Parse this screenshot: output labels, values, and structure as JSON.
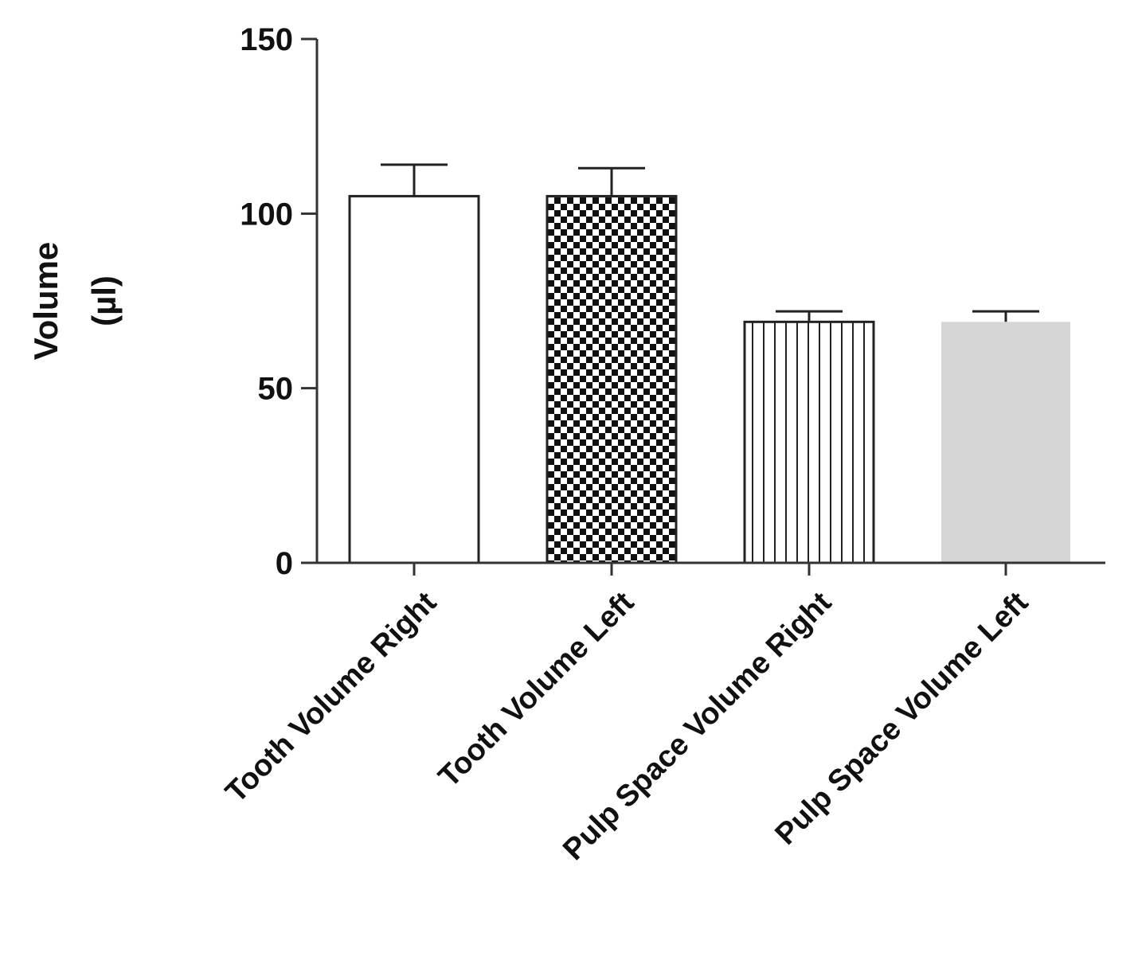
{
  "chart_data": {
    "type": "bar",
    "title": "",
    "xlabel": "",
    "ylabel": [
      "Volume",
      "(µl)"
    ],
    "ylim": [
      0,
      150
    ],
    "yticks": [
      0,
      50,
      100,
      150
    ],
    "grid": false,
    "categories": [
      "Tooth Volume Right",
      "Tooth Volume Left",
      "Pulp Space Volume Right",
      "Pulp Space Volume Left"
    ],
    "values": [
      105,
      105,
      69,
      69
    ],
    "errors": [
      9,
      8,
      3,
      3
    ],
    "fills": [
      "open",
      "checkered",
      "vertical-stripes",
      "light-gray"
    ],
    "colors": {
      "axis": "#333333",
      "bar_stroke": "#222222",
      "gray_fill": "#d6d6d6"
    }
  }
}
